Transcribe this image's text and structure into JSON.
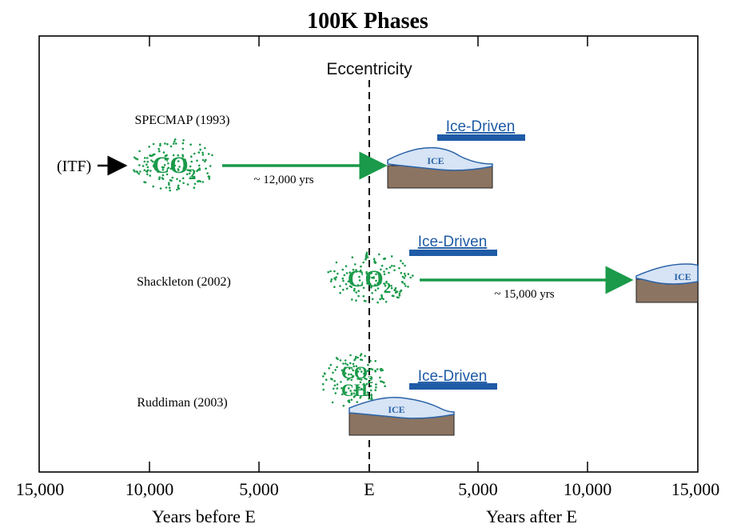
{
  "title": "100K Phases",
  "reference_line_label": "Eccentricity",
  "rows": [
    {
      "label": "SPECMAP (1993)",
      "co2_main": "CO",
      "co2_sub": "2",
      "driver_label": "Ice-Driven",
      "lag_label": "~ 12,000 yrs",
      "ice_label": "ICE"
    },
    {
      "label": "Shackleton (2002)",
      "co2_main": "CO",
      "co2_sub": "2",
      "driver_label": "Ice-Driven",
      "lag_label": "~ 15,000 yrs",
      "ice_label": "ICE"
    },
    {
      "label": "Ruddiman (2003)",
      "co2_main": "CO",
      "co2_sub": "2",
      "ch4_main": "CH",
      "ch4_sub": "4",
      "driver_label": "Ice-Driven",
      "ice_label": "ICE"
    }
  ],
  "itf_label": "(ITF)",
  "x_ticks": [
    "15,000",
    "10,000",
    "5,000",
    "E",
    "5,000",
    "10,000",
    "15,000"
  ],
  "x_label_left": "Years before E",
  "x_label_right": "Years after E",
  "colors": {
    "co2_green": "#1a9a4a",
    "arrow_green": "#1a9a4a",
    "ice_fill": "#d6e4f5",
    "ice_stroke": "#2a62a8",
    "ground": "#8b7462",
    "driver_blue": "#1f5ba6"
  }
}
